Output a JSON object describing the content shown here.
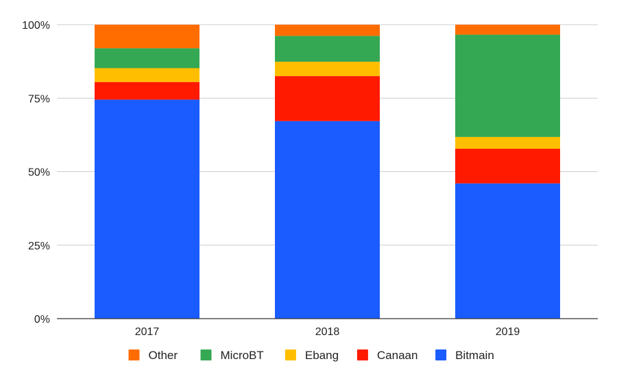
{
  "chart_data": {
    "type": "bar",
    "stacked": true,
    "normalized": true,
    "categories": [
      "2017",
      "2018",
      "2019"
    ],
    "series": [
      {
        "name": "Bitmain",
        "color": "#1A5CFF",
        "values": [
          74.5,
          67.2,
          46.0
        ]
      },
      {
        "name": "Canaan",
        "color": "#FF1A00",
        "values": [
          6.0,
          15.3,
          11.8
        ]
      },
      {
        "name": "Ebang",
        "color": "#FFBF00",
        "values": [
          4.7,
          4.9,
          4.0
        ]
      },
      {
        "name": "MicroBT",
        "color": "#35A853",
        "values": [
          6.8,
          8.8,
          34.8
        ]
      },
      {
        "name": "Other",
        "color": "#FF6D00",
        "values": [
          8.0,
          3.8,
          3.4
        ]
      }
    ],
    "legend_order": [
      "Other",
      "MicroBT",
      "Ebang",
      "Canaan",
      "Bitmain"
    ],
    "y_ticks": [
      "0%",
      "25%",
      "50%",
      "75%",
      "100%"
    ],
    "ylim": [
      0,
      100
    ],
    "grid": true,
    "legend_position": "bottom",
    "title": "",
    "xlabel": "",
    "ylabel": ""
  }
}
